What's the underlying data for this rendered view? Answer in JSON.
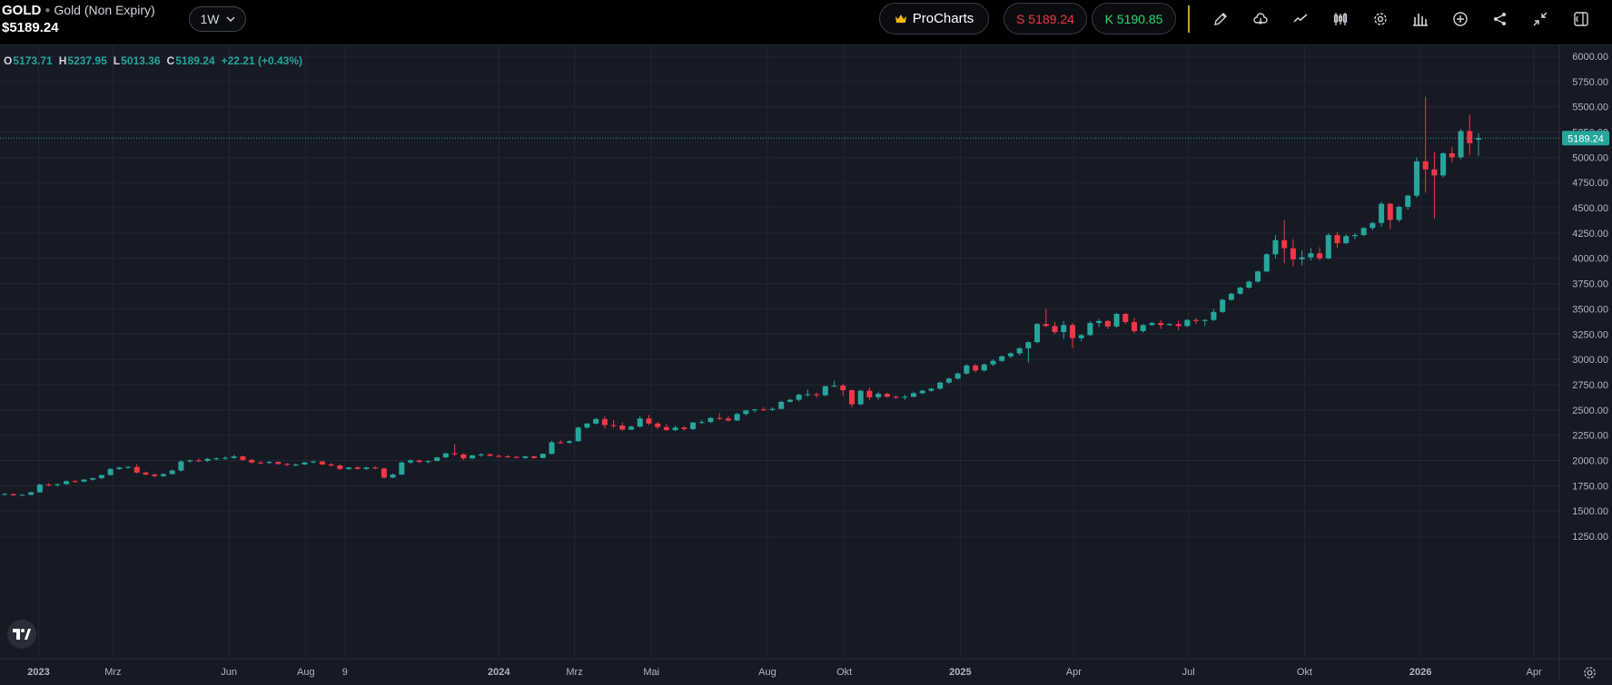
{
  "header": {
    "symbol": "GOLD",
    "description": "Gold (Non Expiry)",
    "price": "$5189.24",
    "timeframe": "1W",
    "procharts_label": "ProCharts",
    "sell_label": "S 5189.24",
    "buy_label": "K 5190.85"
  },
  "toolbar_icons": [
    "pencil-icon",
    "cloud-icon",
    "line-chart-icon",
    "candles-icon",
    "gear-icon",
    "bars-icon",
    "plus-circle-icon",
    "share-icon",
    "compress-icon",
    "sidebar-icon"
  ],
  "ohlc": {
    "open": "5173.71",
    "high": "5237.95",
    "low": "5013.36",
    "close": "5189.24",
    "change": "+22.21 (+0.43%)"
  },
  "colors": {
    "up": "#26a69a",
    "down": "#f23645",
    "background": "#161a25",
    "grid": "#232733",
    "accent_gold": "#c9a227"
  },
  "chart_data": {
    "type": "candlestick",
    "interval": "1W",
    "ylim": [
      1250,
      6000
    ],
    "y_ticks": [
      "6000.00",
      "5750.00",
      "5500.00",
      "5250.00",
      "5000.00",
      "4750.00",
      "4500.00",
      "4250.00",
      "4000.00",
      "3750.00",
      "3500.00",
      "3250.00",
      "3000.00",
      "2750.00",
      "2500.00",
      "2250.00",
      "2000.00",
      "1750.00",
      "1500.00",
      "1250.00"
    ],
    "x_ticks": [
      {
        "label": "2023",
        "bold": true,
        "date": "2023-01"
      },
      {
        "label": "Mrz",
        "date": "2023-03"
      },
      {
        "label": "Jun",
        "date": "2023-06"
      },
      {
        "label": "Aug",
        "date": "2023-08"
      },
      {
        "label": "9",
        "date": "2023-09"
      },
      {
        "label": "2024",
        "bold": true,
        "date": "2024-01"
      },
      {
        "label": "Mrz",
        "date": "2024-03"
      },
      {
        "label": "Mai",
        "date": "2024-05"
      },
      {
        "label": "Aug",
        "date": "2024-08"
      },
      {
        "label": "Okt",
        "date": "2024-10"
      },
      {
        "label": "2025",
        "bold": true,
        "date": "2025-01"
      },
      {
        "label": "Apr",
        "date": "2025-04"
      },
      {
        "label": "Jul",
        "date": "2025-07"
      },
      {
        "label": "Okt",
        "date": "2025-10"
      },
      {
        "label": "2026",
        "bold": true,
        "date": "2026-01"
      },
      {
        "label": "Apr",
        "date": "2026-04"
      }
    ],
    "last_price": 5189.24,
    "last_price_label": "5189.24",
    "ohlc_weekly": [
      [
        1665,
        1680,
        1655,
        1668
      ],
      [
        1668,
        1672,
        1650,
        1655
      ],
      [
        1655,
        1665,
        1648,
        1660
      ],
      [
        1660,
        1690,
        1655,
        1685
      ],
      [
        1685,
        1770,
        1680,
        1760
      ],
      [
        1760,
        1775,
        1745,
        1755
      ],
      [
        1755,
        1770,
        1740,
        1765
      ],
      [
        1765,
        1800,
        1760,
        1795
      ],
      [
        1795,
        1805,
        1780,
        1790
      ],
      [
        1790,
        1815,
        1785,
        1810
      ],
      [
        1810,
        1830,
        1800,
        1825
      ],
      [
        1825,
        1860,
        1815,
        1855
      ],
      [
        1855,
        1925,
        1850,
        1915
      ],
      [
        1915,
        1935,
        1905,
        1930
      ],
      [
        1930,
        1945,
        1920,
        1935
      ],
      [
        1935,
        1965,
        1870,
        1880
      ],
      [
        1880,
        1890,
        1850,
        1860
      ],
      [
        1860,
        1870,
        1835,
        1845
      ],
      [
        1845,
        1870,
        1835,
        1865
      ],
      [
        1865,
        1910,
        1860,
        1900
      ],
      [
        1900,
        2000,
        1890,
        1990
      ],
      [
        1990,
        2010,
        1975,
        2000
      ],
      [
        2000,
        2020,
        1985,
        1995
      ],
      [
        1995,
        2025,
        1985,
        2015
      ],
      [
        2015,
        2030,
        2000,
        2020
      ],
      [
        2020,
        2040,
        2005,
        2025
      ],
      [
        2025,
        2055,
        2015,
        2040
      ],
      [
        2040,
        2050,
        1995,
        2005
      ],
      [
        2005,
        2015,
        1970,
        1980
      ],
      [
        1980,
        1990,
        1960,
        1975
      ],
      [
        1975,
        1995,
        1965,
        1985
      ],
      [
        1985,
        1990,
        1955,
        1965
      ],
      [
        1965,
        1975,
        1945,
        1955
      ],
      [
        1955,
        1970,
        1940,
        1960
      ],
      [
        1960,
        1985,
        1955,
        1980
      ],
      [
        1980,
        2000,
        1970,
        1990
      ],
      [
        1990,
        1995,
        1955,
        1960
      ],
      [
        1960,
        1975,
        1940,
        1950
      ],
      [
        1950,
        1960,
        1905,
        1915
      ],
      [
        1915,
        1935,
        1905,
        1930
      ],
      [
        1930,
        1945,
        1910,
        1915
      ],
      [
        1915,
        1935,
        1905,
        1930
      ],
      [
        1930,
        1945,
        1915,
        1920
      ],
      [
        1920,
        1930,
        1820,
        1830
      ],
      [
        1830,
        1870,
        1825,
        1860
      ],
      [
        1860,
        1990,
        1855,
        1980
      ],
      [
        1980,
        2010,
        1965,
        2000
      ],
      [
        2000,
        2010,
        1975,
        1985
      ],
      [
        1985,
        2000,
        1970,
        1995
      ],
      [
        1995,
        2035,
        1990,
        2030
      ],
      [
        2030,
        2075,
        2020,
        2070
      ],
      [
        2070,
        2160,
        2045,
        2060
      ],
      [
        2060,
        2070,
        2005,
        2020
      ],
      [
        2020,
        2055,
        2015,
        2050
      ],
      [
        2050,
        2070,
        2035,
        2060
      ],
      [
        2060,
        2070,
        2040,
        2045
      ],
      [
        2045,
        2060,
        2030,
        2040
      ],
      [
        2040,
        2055,
        2025,
        2035
      ],
      [
        2035,
        2045,
        2020,
        2025
      ],
      [
        2025,
        2045,
        2015,
        2040
      ],
      [
        2040,
        2050,
        2015,
        2025
      ],
      [
        2025,
        2070,
        2020,
        2065
      ],
      [
        2065,
        2195,
        2060,
        2180
      ],
      [
        2180,
        2200,
        2165,
        2175
      ],
      [
        2175,
        2200,
        2165,
        2190
      ],
      [
        2190,
        2335,
        2185,
        2325
      ],
      [
        2325,
        2370,
        2315,
        2365
      ],
      [
        2365,
        2420,
        2355,
        2410
      ],
      [
        2410,
        2440,
        2315,
        2350
      ],
      [
        2350,
        2400,
        2320,
        2345
      ],
      [
        2345,
        2375,
        2295,
        2305
      ],
      [
        2305,
        2345,
        2300,
        2335
      ],
      [
        2335,
        2440,
        2325,
        2415
      ],
      [
        2415,
        2450,
        2350,
        2365
      ],
      [
        2365,
        2380,
        2310,
        2330
      ],
      [
        2330,
        2360,
        2295,
        2300
      ],
      [
        2300,
        2345,
        2290,
        2325
      ],
      [
        2325,
        2340,
        2295,
        2310
      ],
      [
        2310,
        2380,
        2300,
        2375
      ],
      [
        2375,
        2400,
        2360,
        2380
      ],
      [
        2380,
        2430,
        2370,
        2420
      ],
      [
        2420,
        2470,
        2400,
        2415
      ],
      [
        2415,
        2440,
        2385,
        2395
      ],
      [
        2395,
        2470,
        2390,
        2460
      ],
      [
        2460,
        2500,
        2445,
        2495
      ],
      [
        2495,
        2510,
        2475,
        2505
      ],
      [
        2505,
        2525,
        2490,
        2500
      ],
      [
        2500,
        2525,
        2490,
        2510
      ],
      [
        2510,
        2590,
        2505,
        2580
      ],
      [
        2580,
        2610,
        2570,
        2600
      ],
      [
        2600,
        2660,
        2585,
        2650
      ],
      [
        2650,
        2700,
        2630,
        2655
      ],
      [
        2655,
        2670,
        2620,
        2645
      ],
      [
        2645,
        2740,
        2635,
        2735
      ],
      [
        2735,
        2790,
        2725,
        2740
      ],
      [
        2740,
        2760,
        2640,
        2695
      ],
      [
        2695,
        2700,
        2525,
        2555
      ],
      [
        2555,
        2700,
        2545,
        2690
      ],
      [
        2690,
        2720,
        2600,
        2625
      ],
      [
        2625,
        2680,
        2600,
        2660
      ],
      [
        2660,
        2670,
        2620,
        2630
      ],
      [
        2630,
        2645,
        2610,
        2620
      ],
      [
        2620,
        2650,
        2600,
        2630
      ],
      [
        2630,
        2680,
        2625,
        2665
      ],
      [
        2665,
        2700,
        2655,
        2690
      ],
      [
        2690,
        2720,
        2680,
        2710
      ],
      [
        2710,
        2780,
        2700,
        2770
      ],
      [
        2770,
        2820,
        2760,
        2810
      ],
      [
        2810,
        2870,
        2800,
        2860
      ],
      [
        2860,
        2955,
        2850,
        2940
      ],
      [
        2940,
        2955,
        2870,
        2890
      ],
      [
        2890,
        2960,
        2880,
        2950
      ],
      [
        2950,
        3000,
        2935,
        2985
      ],
      [
        2985,
        3040,
        2970,
        3030
      ],
      [
        3030,
        3070,
        3010,
        3060
      ],
      [
        3060,
        3120,
        3040,
        3110
      ],
      [
        3110,
        3180,
        2970,
        3170
      ],
      [
        3170,
        3360,
        3160,
        3350
      ],
      [
        3350,
        3500,
        3320,
        3330
      ],
      [
        3330,
        3370,
        3250,
        3270
      ],
      [
        3270,
        3380,
        3200,
        3340
      ],
      [
        3340,
        3360,
        3110,
        3210
      ],
      [
        3210,
        3250,
        3180,
        3240
      ],
      [
        3240,
        3380,
        3230,
        3360
      ],
      [
        3360,
        3400,
        3320,
        3380
      ],
      [
        3380,
        3390,
        3300,
        3325
      ],
      [
        3325,
        3460,
        3315,
        3450
      ],
      [
        3450,
        3460,
        3350,
        3370
      ],
      [
        3370,
        3410,
        3260,
        3280
      ],
      [
        3280,
        3350,
        3265,
        3340
      ],
      [
        3340,
        3370,
        3330,
        3360
      ],
      [
        3360,
        3390,
        3300,
        3340
      ],
      [
        3340,
        3360,
        3330,
        3350
      ],
      [
        3350,
        3380,
        3290,
        3330
      ],
      [
        3330,
        3400,
        3320,
        3390
      ],
      [
        3390,
        3410,
        3350,
        3380
      ],
      [
        3380,
        3400,
        3330,
        3390
      ],
      [
        3390,
        3500,
        3380,
        3470
      ],
      [
        3470,
        3600,
        3460,
        3590
      ],
      [
        3590,
        3660,
        3580,
        3650
      ],
      [
        3650,
        3720,
        3640,
        3710
      ],
      [
        3710,
        3780,
        3700,
        3770
      ],
      [
        3770,
        3880,
        3760,
        3870
      ],
      [
        3870,
        4050,
        3860,
        4040
      ],
      [
        4040,
        4230,
        4000,
        4180
      ],
      [
        4180,
        4380,
        3950,
        4100
      ],
      [
        4100,
        4190,
        3920,
        3990
      ],
      [
        3990,
        4080,
        3930,
        4010
      ],
      [
        4010,
        4100,
        3980,
        4050
      ],
      [
        4050,
        4110,
        3980,
        4000
      ],
      [
        4000,
        4250,
        3990,
        4230
      ],
      [
        4230,
        4260,
        4100,
        4150
      ],
      [
        4150,
        4240,
        4140,
        4220
      ],
      [
        4220,
        4250,
        4190,
        4230
      ],
      [
        4230,
        4310,
        4220,
        4300
      ],
      [
        4300,
        4360,
        4280,
        4350
      ],
      [
        4350,
        4560,
        4310,
        4540
      ],
      [
        4540,
        4550,
        4290,
        4380
      ],
      [
        4380,
        4520,
        4360,
        4510
      ],
      [
        4510,
        4630,
        4480,
        4620
      ],
      [
        4620,
        5000,
        4600,
        4960
      ],
      [
        4960,
        5600,
        4650,
        4880
      ],
      [
        4880,
        5050,
        4390,
        4820
      ],
      [
        4820,
        5050,
        4800,
        5040
      ],
      [
        5040,
        5100,
        4950,
        5000
      ],
      [
        5000,
        5280,
        4980,
        5260
      ],
      [
        5260,
        5420,
        5020,
        5140
      ],
      [
        5173.71,
        5237.95,
        5013.36,
        5189.24
      ]
    ]
  }
}
